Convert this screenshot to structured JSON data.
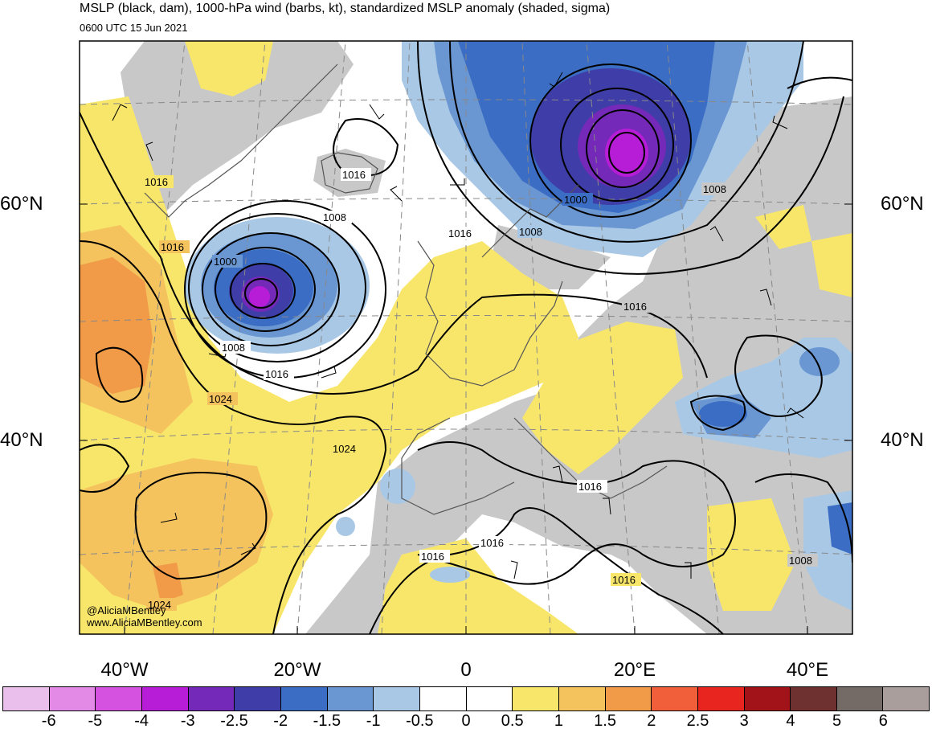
{
  "header": {
    "title": "MSLP (black, dam), 1000-hPa wind (barbs, kt), standardized MSLP anomaly (shaded, sigma)",
    "valid_time": "0600 UTC 15 Jun 2021"
  },
  "credits": {
    "handle": "@AliciaMBentley",
    "url": "www.AliciaMBentley.com"
  },
  "axes": {
    "lat_labels": [
      "60°N",
      "40°N"
    ],
    "lon_labels": [
      "40°W",
      "20°W",
      "0",
      "20°E",
      "40°E"
    ]
  },
  "isobar_labels": [
    "1016",
    "1016",
    "1016",
    "1008",
    "1000",
    "1008",
    "1016",
    "1000",
    "1008",
    "1008",
    "1016",
    "1016",
    "1016",
    "1016",
    "1024",
    "1024",
    "1024",
    "1016",
    "1008",
    "1016"
  ],
  "colorbar": {
    "labels": [
      "-6",
      "-5",
      "-4",
      "-3",
      "-2.5",
      "-2",
      "-1.5",
      "-1",
      "-0.5",
      "0",
      "0.5",
      "1",
      "1.5",
      "2",
      "2.5",
      "3",
      "4",
      "5",
      "6"
    ],
    "colors": [
      "#ebbfeb",
      "#e28ae6",
      "#d552e0",
      "#b71dd6",
      "#7429b8",
      "#3f3ea8",
      "#3b6dc4",
      "#6a96d2",
      "#a8c8e6",
      "#ffffff",
      "#ffffff",
      "#f8e66b",
      "#f4c35e",
      "#f19a48",
      "#f15f3a",
      "#e8251e",
      "#a11318",
      "#6f3030",
      "#746a66",
      "#a99e9c"
    ]
  },
  "anomaly_colors": {
    "land_gray": "#c8c8c8",
    "pos_05": "#f8e66b",
    "pos_10": "#f4c35e",
    "pos_15": "#f19a48",
    "neg_05": "#a8c8e6",
    "neg_10": "#6a96d2",
    "neg_15": "#3b6dc4",
    "neg_20": "#3f3ea8",
    "neg_25": "#7429b8",
    "neg_30": "#b71dd6"
  }
}
